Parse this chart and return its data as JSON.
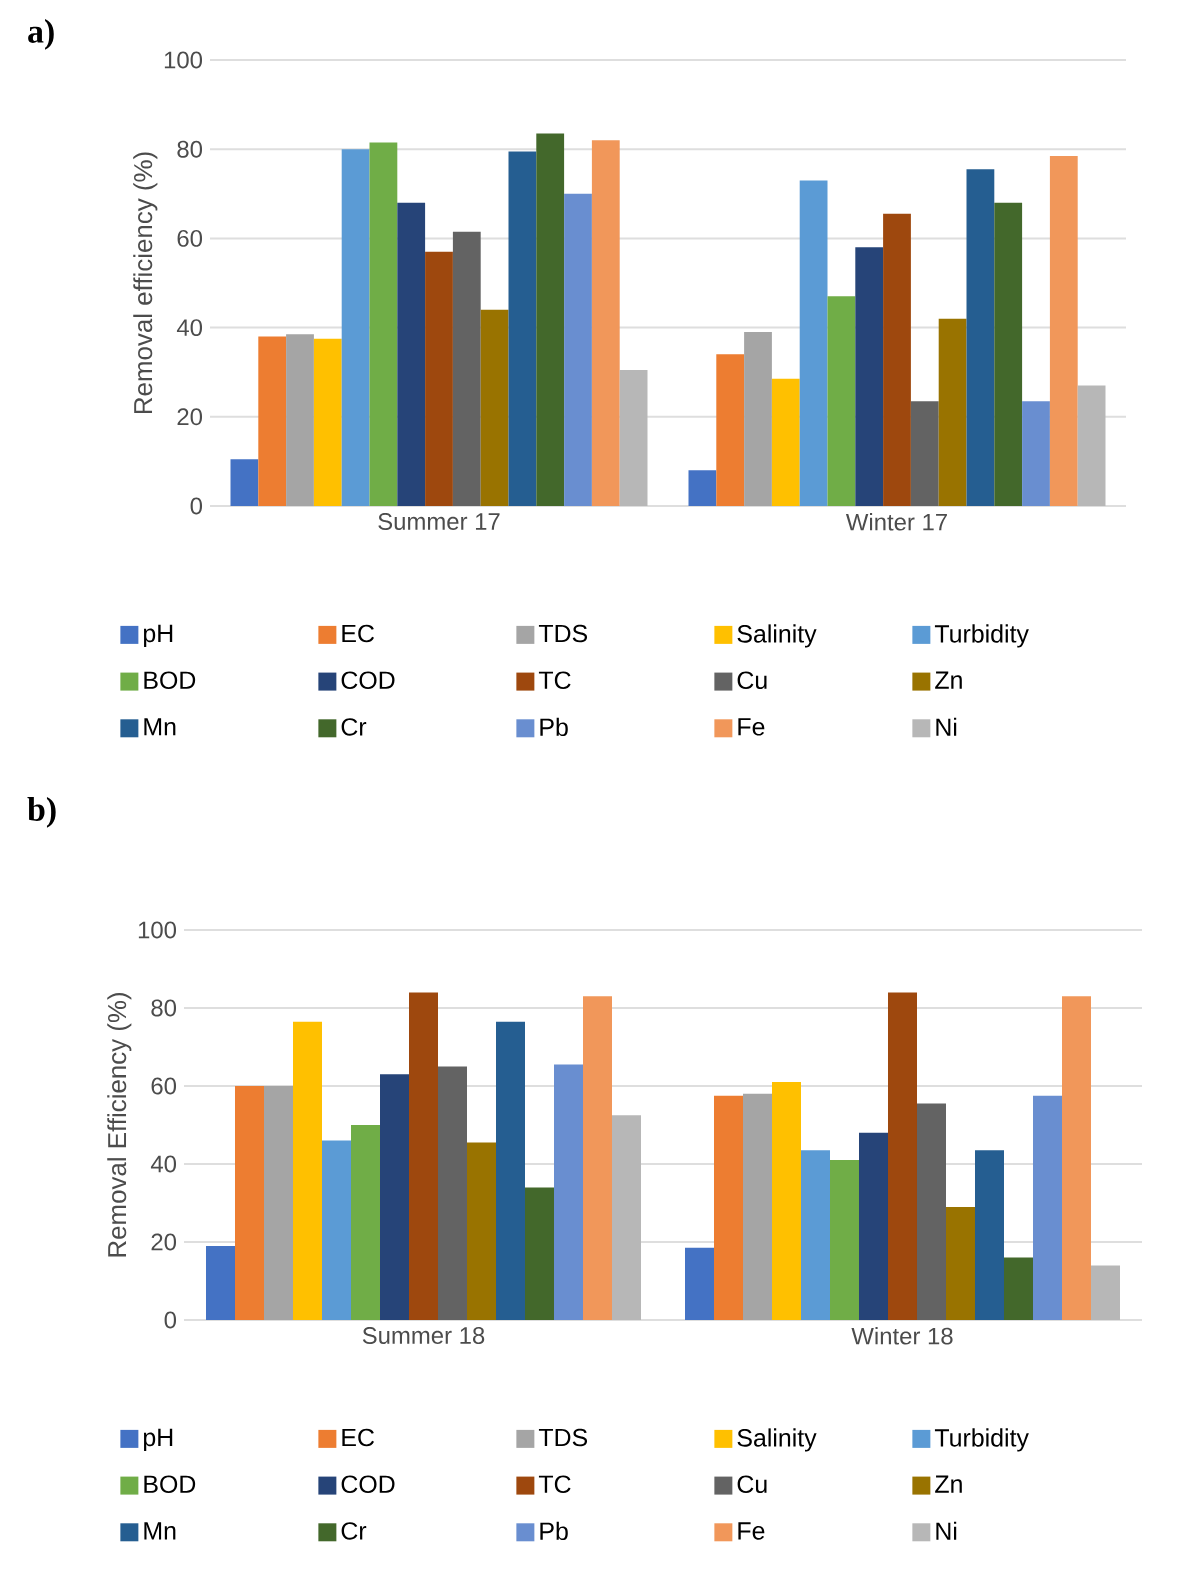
{
  "chart_data": [
    {
      "type": "bar",
      "annotations": [
        "a)"
      ],
      "ylabel": "Removal efficiency (%)",
      "categories": [
        "Summer 17",
        "Winter 17"
      ],
      "ylim": [
        0,
        100
      ],
      "yticks": [
        0,
        20,
        40,
        60,
        80,
        100
      ],
      "grid": "y",
      "legend": "bottom",
      "series": [
        {
          "name": "pH",
          "color": "#4472c4",
          "values": [
            10.5,
            8
          ]
        },
        {
          "name": "EC",
          "color": "#ed7d31",
          "values": [
            38,
            34
          ]
        },
        {
          "name": "TDS",
          "color": "#a5a5a5",
          "values": [
            38.5,
            39
          ]
        },
        {
          "name": "Salinity",
          "color": "#ffc000",
          "values": [
            37.5,
            28.5
          ]
        },
        {
          "name": "Turbidity",
          "color": "#5b9bd5",
          "values": [
            80,
            73
          ]
        },
        {
          "name": "BOD",
          "color": "#70ad47",
          "values": [
            81.5,
            47
          ]
        },
        {
          "name": "COD",
          "color": "#264478",
          "values": [
            68,
            58
          ]
        },
        {
          "name": "TC",
          "color": "#9e480e",
          "values": [
            57,
            65.5
          ]
        },
        {
          "name": "Cu",
          "color": "#636363",
          "values": [
            61.5,
            23.5
          ]
        },
        {
          "name": "Zn",
          "color": "#997300",
          "values": [
            44,
            42
          ]
        },
        {
          "name": "Mn",
          "color": "#255e91",
          "values": [
            79.5,
            75.5
          ]
        },
        {
          "name": "Cr",
          "color": "#43682b",
          "values": [
            83.5,
            68
          ]
        },
        {
          "name": "Pb",
          "color": "#698ed0",
          "values": [
            70,
            23.5
          ]
        },
        {
          "name": "Fe",
          "color": "#f1975a",
          "values": [
            82,
            78.5
          ]
        },
        {
          "name": "Ni",
          "color": "#b7b7b7",
          "values": [
            30.5,
            27
          ]
        }
      ]
    },
    {
      "type": "bar",
      "annotations": [
        "b)"
      ],
      "ylabel": "Removal Efficiency (%)",
      "categories": [
        "Summer 18",
        "Winter 18"
      ],
      "ylim": [
        0,
        100
      ],
      "yticks": [
        0,
        20,
        40,
        60,
        80,
        100
      ],
      "grid": "y",
      "legend": "bottom",
      "series": [
        {
          "name": "pH",
          "color": "#4472c4",
          "values": [
            19,
            18.5
          ]
        },
        {
          "name": "EC",
          "color": "#ed7d31",
          "values": [
            60,
            57.5
          ]
        },
        {
          "name": "TDS",
          "color": "#a5a5a5",
          "values": [
            60,
            58
          ]
        },
        {
          "name": "Salinity",
          "color": "#ffc000",
          "values": [
            76.5,
            61
          ]
        },
        {
          "name": "Turbidity",
          "color": "#5b9bd5",
          "values": [
            46,
            43.5
          ]
        },
        {
          "name": "BOD",
          "color": "#70ad47",
          "values": [
            50,
            41
          ]
        },
        {
          "name": "COD",
          "color": "#264478",
          "values": [
            63,
            48
          ]
        },
        {
          "name": "TC",
          "color": "#9e480e",
          "values": [
            84,
            84
          ]
        },
        {
          "name": "Cu",
          "color": "#636363",
          "values": [
            65,
            55.5
          ]
        },
        {
          "name": "Zn",
          "color": "#997300",
          "values": [
            45.5,
            29
          ]
        },
        {
          "name": "Mn",
          "color": "#255e91",
          "values": [
            76.5,
            43.5
          ]
        },
        {
          "name": "Cr",
          "color": "#43682b",
          "values": [
            34,
            16
          ]
        },
        {
          "name": "Pb",
          "color": "#698ed0",
          "values": [
            65.5,
            57.5
          ]
        },
        {
          "name": "Fe",
          "color": "#f1975a",
          "values": [
            83,
            83
          ]
        },
        {
          "name": "Ni",
          "color": "#b7b7b7",
          "values": [
            52.5,
            14
          ]
        }
      ]
    }
  ]
}
